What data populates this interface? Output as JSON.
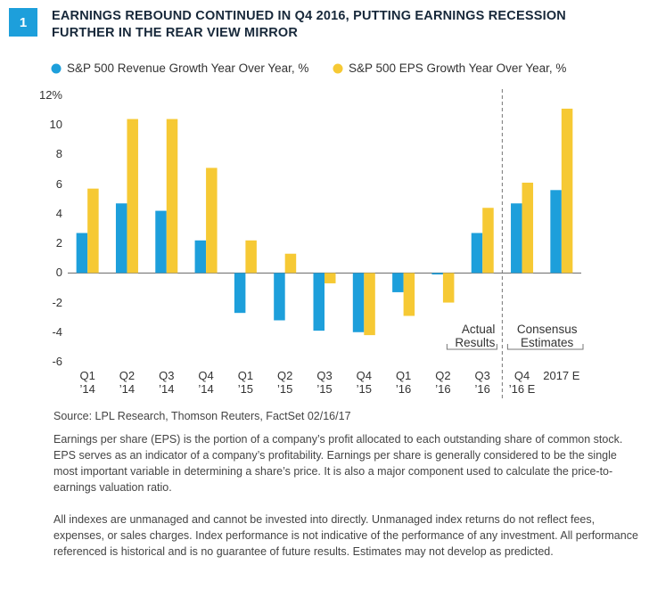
{
  "chart_data": {
    "type": "bar",
    "figure_number": "1",
    "title": "EARNINGS REBOUND CONTINUED IN Q4 2016, PUTTING EARNINGS RECESSION FURTHER IN THE REAR VIEW MIRROR",
    "categories": [
      "Q1\n’14",
      "Q2\n’14",
      "Q3\n’14",
      "Q4\n’14",
      "Q1\n’15",
      "Q2\n’15",
      "Q3\n’15",
      "Q4\n’15",
      "Q1\n’16",
      "Q2\n’16",
      "Q3\n’16",
      "Q4\n’16 E",
      "2017 E"
    ],
    "series": [
      {
        "name": "S&P 500 Revenue Growth Year Over Year, %",
        "color": "#1d9fdb",
        "values": [
          2.7,
          4.7,
          4.2,
          2.2,
          -2.7,
          -3.2,
          -3.9,
          -4.0,
          -1.3,
          -0.1,
          2.7,
          4.7,
          5.6
        ]
      },
      {
        "name": "S&P 500 EPS Growth Year Over Year, %",
        "color": "#f6c934",
        "values": [
          5.7,
          10.4,
          10.4,
          7.1,
          2.2,
          1.3,
          -0.7,
          -4.2,
          -2.9,
          -2.0,
          4.4,
          6.1,
          11.1
        ]
      }
    ],
    "ylim": [
      -6,
      12
    ],
    "yticks": [
      -6,
      -4,
      -2,
      0,
      2,
      4,
      6,
      8,
      10,
      {
        "value": 12,
        "label": "12%"
      }
    ],
    "annotations": [
      "Actual\nResults",
      "Consensus\nEstimates"
    ],
    "source": "Source: LPL Research, Thomson Reuters, FactSet   02/16/17",
    "notes": [
      "Earnings per share (EPS) is the portion of a company’s profit allocated to each outstanding share of common stock. EPS serves as an indicator of a company’s profitability. Earnings per share is generally considered to be the single most important variable in determining a share’s price. It is also a major component used to calculate the price-to-earnings valuation ratio.",
      "All indexes are unmanaged and cannot be invested into directly. Unmanaged index returns do not reflect fees, expenses, or sales charges. Index performance is not indicative of the performance of any investment. All performance referenced is historical and is no guarantee of future results. Estimates may not develop as predicted."
    ]
  }
}
